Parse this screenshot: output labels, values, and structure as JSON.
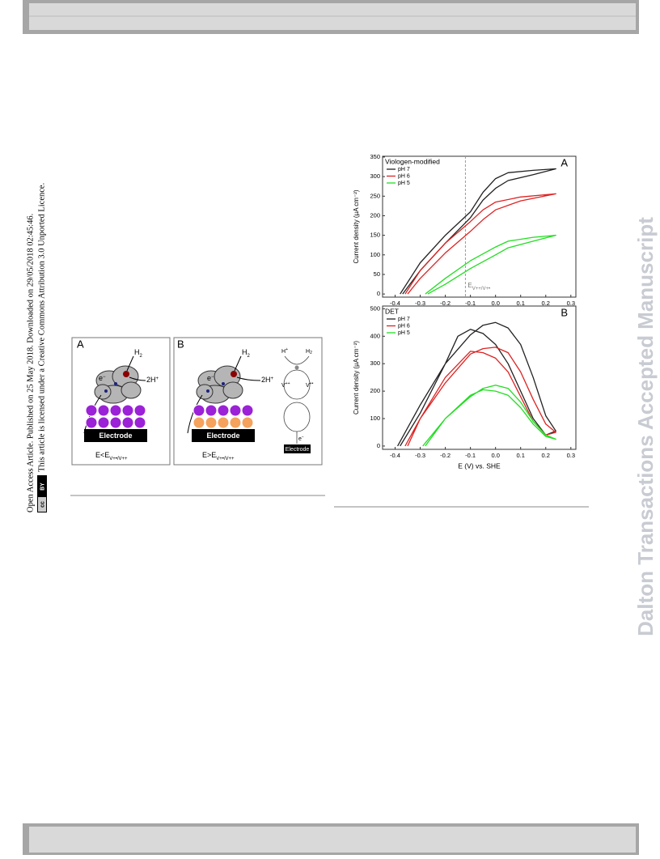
{
  "sidebar": {
    "line1": "Open Access Article. Published on 25 May 2018. Downloaded on 29/05/2018 02:45:46.",
    "line2": "This article is licensed under a Creative Commons Attribution 3.0 Unported Licence.",
    "badge": [
      "cc",
      "BY"
    ]
  },
  "watermark": "Dalton Transactions Accepted Manuscript",
  "scheme": {
    "panel_a": {
      "label": "A",
      "h2": [
        "H",
        "2"
      ],
      "protons": [
        "2H",
        "+"
      ],
      "electron": [
        "e",
        "−"
      ],
      "electrode": "Electrode",
      "caption": [
        "E<E",
        "V+•/V++"
      ]
    },
    "panel_b": {
      "label": "B",
      "h2": [
        "H",
        "2"
      ],
      "protons": [
        "2H",
        "+"
      ],
      "electron": [
        "e",
        "−"
      ],
      "electrode": "Electrode",
      "caption": [
        "E>E",
        "V+•/V++"
      ],
      "cycle": {
        "hplus": [
          "H",
          "+"
        ],
        "h2": [
          "H",
          "2"
        ],
        "v_ox": [
          "V",
          "++"
        ],
        "v_red": [
          "V",
          "+•"
        ],
        "electron": [
          "e",
          "−"
        ],
        "electrode": "Electrode"
      }
    }
  },
  "chart_data": [
    {
      "type": "line",
      "title": "A",
      "legend_title": "Viologen-modified",
      "ylabel": "Current density (µA cm⁻²)",
      "xlim": [
        -0.45,
        0.32
      ],
      "ylim": [
        -8,
        352
      ],
      "xticks": [
        -0.4,
        -0.3,
        -0.2,
        -0.1,
        {
          "value": 0,
          "label": "0.0"
        },
        0.1,
        0.2,
        0.3
      ],
      "yticks": [
        0,
        50,
        100,
        150,
        200,
        250,
        300,
        350
      ],
      "annotation": {
        "text": "E",
        "sub": "V++/V+•",
        "x": -0.12
      },
      "series": [
        {
          "name": "pH 7",
          "color": "#222222",
          "x": [
            -0.38,
            -0.3,
            -0.2,
            -0.1,
            -0.05,
            0,
            0.05,
            0.15,
            0.24,
            0.15,
            0.05,
            0,
            -0.05,
            -0.1,
            -0.2,
            -0.3,
            -0.37
          ],
          "values": [
            0,
            80,
            150,
            210,
            260,
            295,
            310,
            316,
            320,
            305,
            290,
            270,
            240,
            195,
            130,
            60,
            0
          ]
        },
        {
          "name": "pH 6",
          "color": "#dd2222",
          "x": [
            -0.36,
            -0.3,
            -0.2,
            -0.1,
            -0.05,
            0,
            0.1,
            0.24,
            0.1,
            0,
            -0.05,
            -0.1,
            -0.2,
            -0.3,
            -0.35
          ],
          "values": [
            0,
            60,
            130,
            185,
            215,
            235,
            248,
            256,
            238,
            215,
            190,
            160,
            105,
            40,
            0
          ]
        },
        {
          "name": "pH 5",
          "color": "#22dd22",
          "x": [
            -0.28,
            -0.2,
            -0.1,
            0,
            0.05,
            0.15,
            0.24,
            0.15,
            0.05,
            0,
            -0.1,
            -0.2,
            -0.27
          ],
          "values": [
            0,
            40,
            85,
            120,
            135,
            145,
            150,
            135,
            118,
            100,
            65,
            25,
            0
          ]
        }
      ]
    },
    {
      "type": "line",
      "title": "B",
      "legend_title": "DET",
      "ylabel": "Current density (µA cm⁻²)",
      "xlabel": "E (V) vs. SHE",
      "xlim": [
        -0.45,
        0.32
      ],
      "ylim": [
        -12,
        510
      ],
      "xticks": [
        -0.4,
        -0.3,
        -0.2,
        -0.1,
        {
          "value": 0,
          "label": "0.0"
        },
        0.1,
        0.2,
        0.3
      ],
      "yticks": [
        0,
        100,
        200,
        300,
        400,
        500
      ],
      "series": [
        {
          "name": "pH 7",
          "color": "#222222",
          "x": [
            -0.39,
            -0.3,
            -0.2,
            -0.1,
            -0.05,
            0,
            0.05,
            0.1,
            0.15,
            0.2,
            0.24,
            0.2,
            0.15,
            0.1,
            0.05,
            0,
            -0.05,
            -0.1,
            -0.15,
            -0.2,
            -0.3,
            -0.38
          ],
          "values": [
            0,
            150,
            300,
            405,
            440,
            450,
            430,
            370,
            250,
            110,
            55,
            40,
            100,
            200,
            300,
            370,
            410,
            425,
            400,
            300,
            120,
            0
          ]
        },
        {
          "name": "pH 6",
          "color": "#dd2222",
          "x": [
            -0.36,
            -0.3,
            -0.2,
            -0.1,
            -0.05,
            0,
            0.05,
            0.1,
            0.15,
            0.2,
            0.24,
            0.2,
            0.15,
            0.1,
            0.05,
            0,
            -0.05,
            -0.1,
            -0.2,
            -0.3,
            -0.35
          ],
          "values": [
            0,
            100,
            230,
            335,
            355,
            360,
            340,
            270,
            170,
            80,
            50,
            40,
            90,
            180,
            270,
            320,
            340,
            345,
            250,
            100,
            0
          ]
        },
        {
          "name": "pH 5",
          "color": "#22dd22",
          "x": [
            -0.29,
            -0.2,
            -0.1,
            -0.05,
            0,
            0.05,
            0.1,
            0.15,
            0.2,
            0.24,
            0.2,
            0.15,
            0.1,
            0.05,
            0,
            -0.05,
            -0.1,
            -0.2,
            -0.28
          ],
          "values": [
            0,
            100,
            180,
            210,
            222,
            210,
            160,
            90,
            40,
            25,
            35,
            80,
            140,
            185,
            200,
            205,
            185,
            100,
            0
          ]
        }
      ]
    }
  ]
}
